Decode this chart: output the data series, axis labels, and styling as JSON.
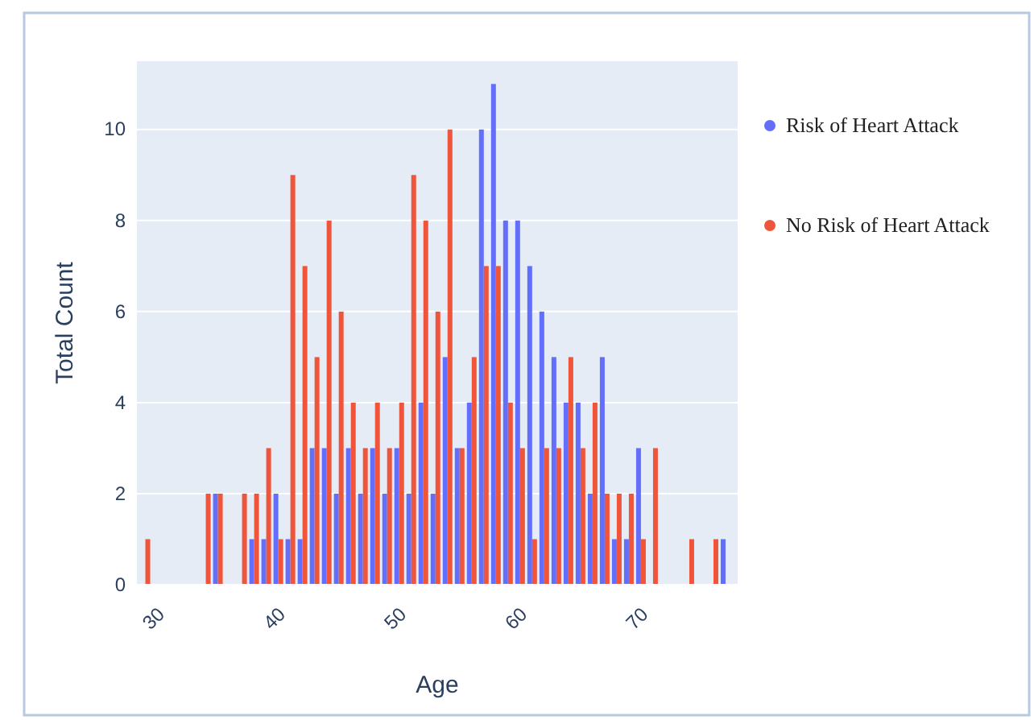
{
  "chart_data": {
    "type": "bar",
    "xlabel": "Age",
    "ylabel": "Total Count",
    "x": [
      29,
      34,
      35,
      37,
      38,
      39,
      40,
      41,
      42,
      43,
      44,
      45,
      46,
      47,
      48,
      49,
      50,
      51,
      52,
      53,
      54,
      55,
      56,
      57,
      58,
      59,
      60,
      61,
      62,
      63,
      64,
      65,
      66,
      67,
      68,
      69,
      70,
      71,
      74,
      76,
      77
    ],
    "series": [
      {
        "name": "Risk of Heart Attack",
        "color": "#636efa",
        "values": [
          0,
          0,
          2,
          0,
          1,
          1,
          2,
          1,
          1,
          3,
          3,
          2,
          3,
          2,
          3,
          2,
          3,
          2,
          4,
          2,
          5,
          3,
          4,
          10,
          11,
          8,
          8,
          7,
          6,
          5,
          4,
          4,
          2,
          5,
          1,
          1,
          3,
          0,
          0,
          0,
          1
        ]
      },
      {
        "name": "No Risk of Heart Attack",
        "color": "#ef553b",
        "values": [
          1,
          2,
          2,
          2,
          2,
          3,
          1,
          9,
          7,
          5,
          8,
          6,
          4,
          3,
          4,
          3,
          4,
          9,
          8,
          6,
          10,
          3,
          5,
          7,
          7,
          4,
          3,
          1,
          3,
          3,
          5,
          3,
          4,
          2,
          2,
          2,
          1,
          3,
          1,
          1,
          0
        ]
      }
    ],
    "xlim": [
      28.3,
      78
    ],
    "xticks": [
      30,
      40,
      50,
      60,
      70
    ],
    "ylim": [
      0,
      11.5
    ],
    "yticks": [
      0,
      2,
      4,
      6,
      8,
      10
    ],
    "grid": "y",
    "legend": "right"
  }
}
